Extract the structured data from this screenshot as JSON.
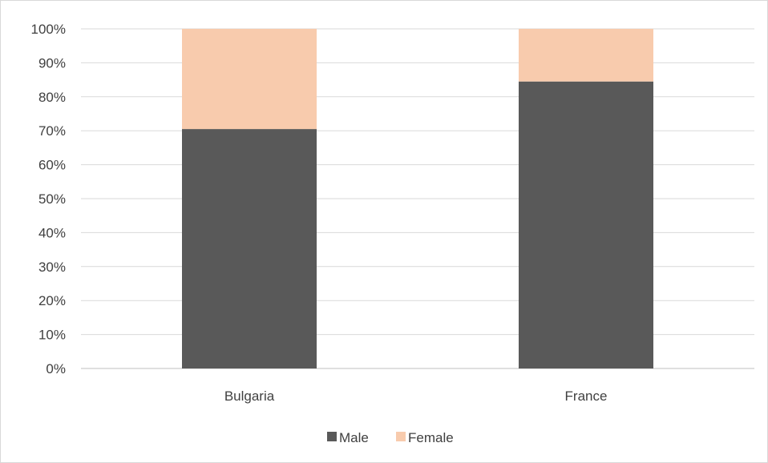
{
  "chart_data": {
    "type": "bar",
    "stacked": true,
    "categories": [
      "Bulgaria",
      "France"
    ],
    "series": [
      {
        "name": "Male",
        "values": [
          0.705,
          0.845
        ],
        "color": "#595959"
      },
      {
        "name": "Female",
        "values": [
          0.295,
          0.155
        ],
        "color": "#f8cbad"
      }
    ],
    "ylim": [
      0,
      1
    ],
    "yticks": [
      "0%",
      "10%",
      "20%",
      "30%",
      "40%",
      "50%",
      "60%",
      "70%",
      "80%",
      "90%",
      "100%"
    ],
    "grid": true,
    "legend_position": "bottom",
    "title": "",
    "xlabel": "",
    "ylabel": ""
  },
  "colors": {
    "gridline": "#d9d9d9",
    "axis": "#bfbfbf",
    "text": "#404040"
  }
}
